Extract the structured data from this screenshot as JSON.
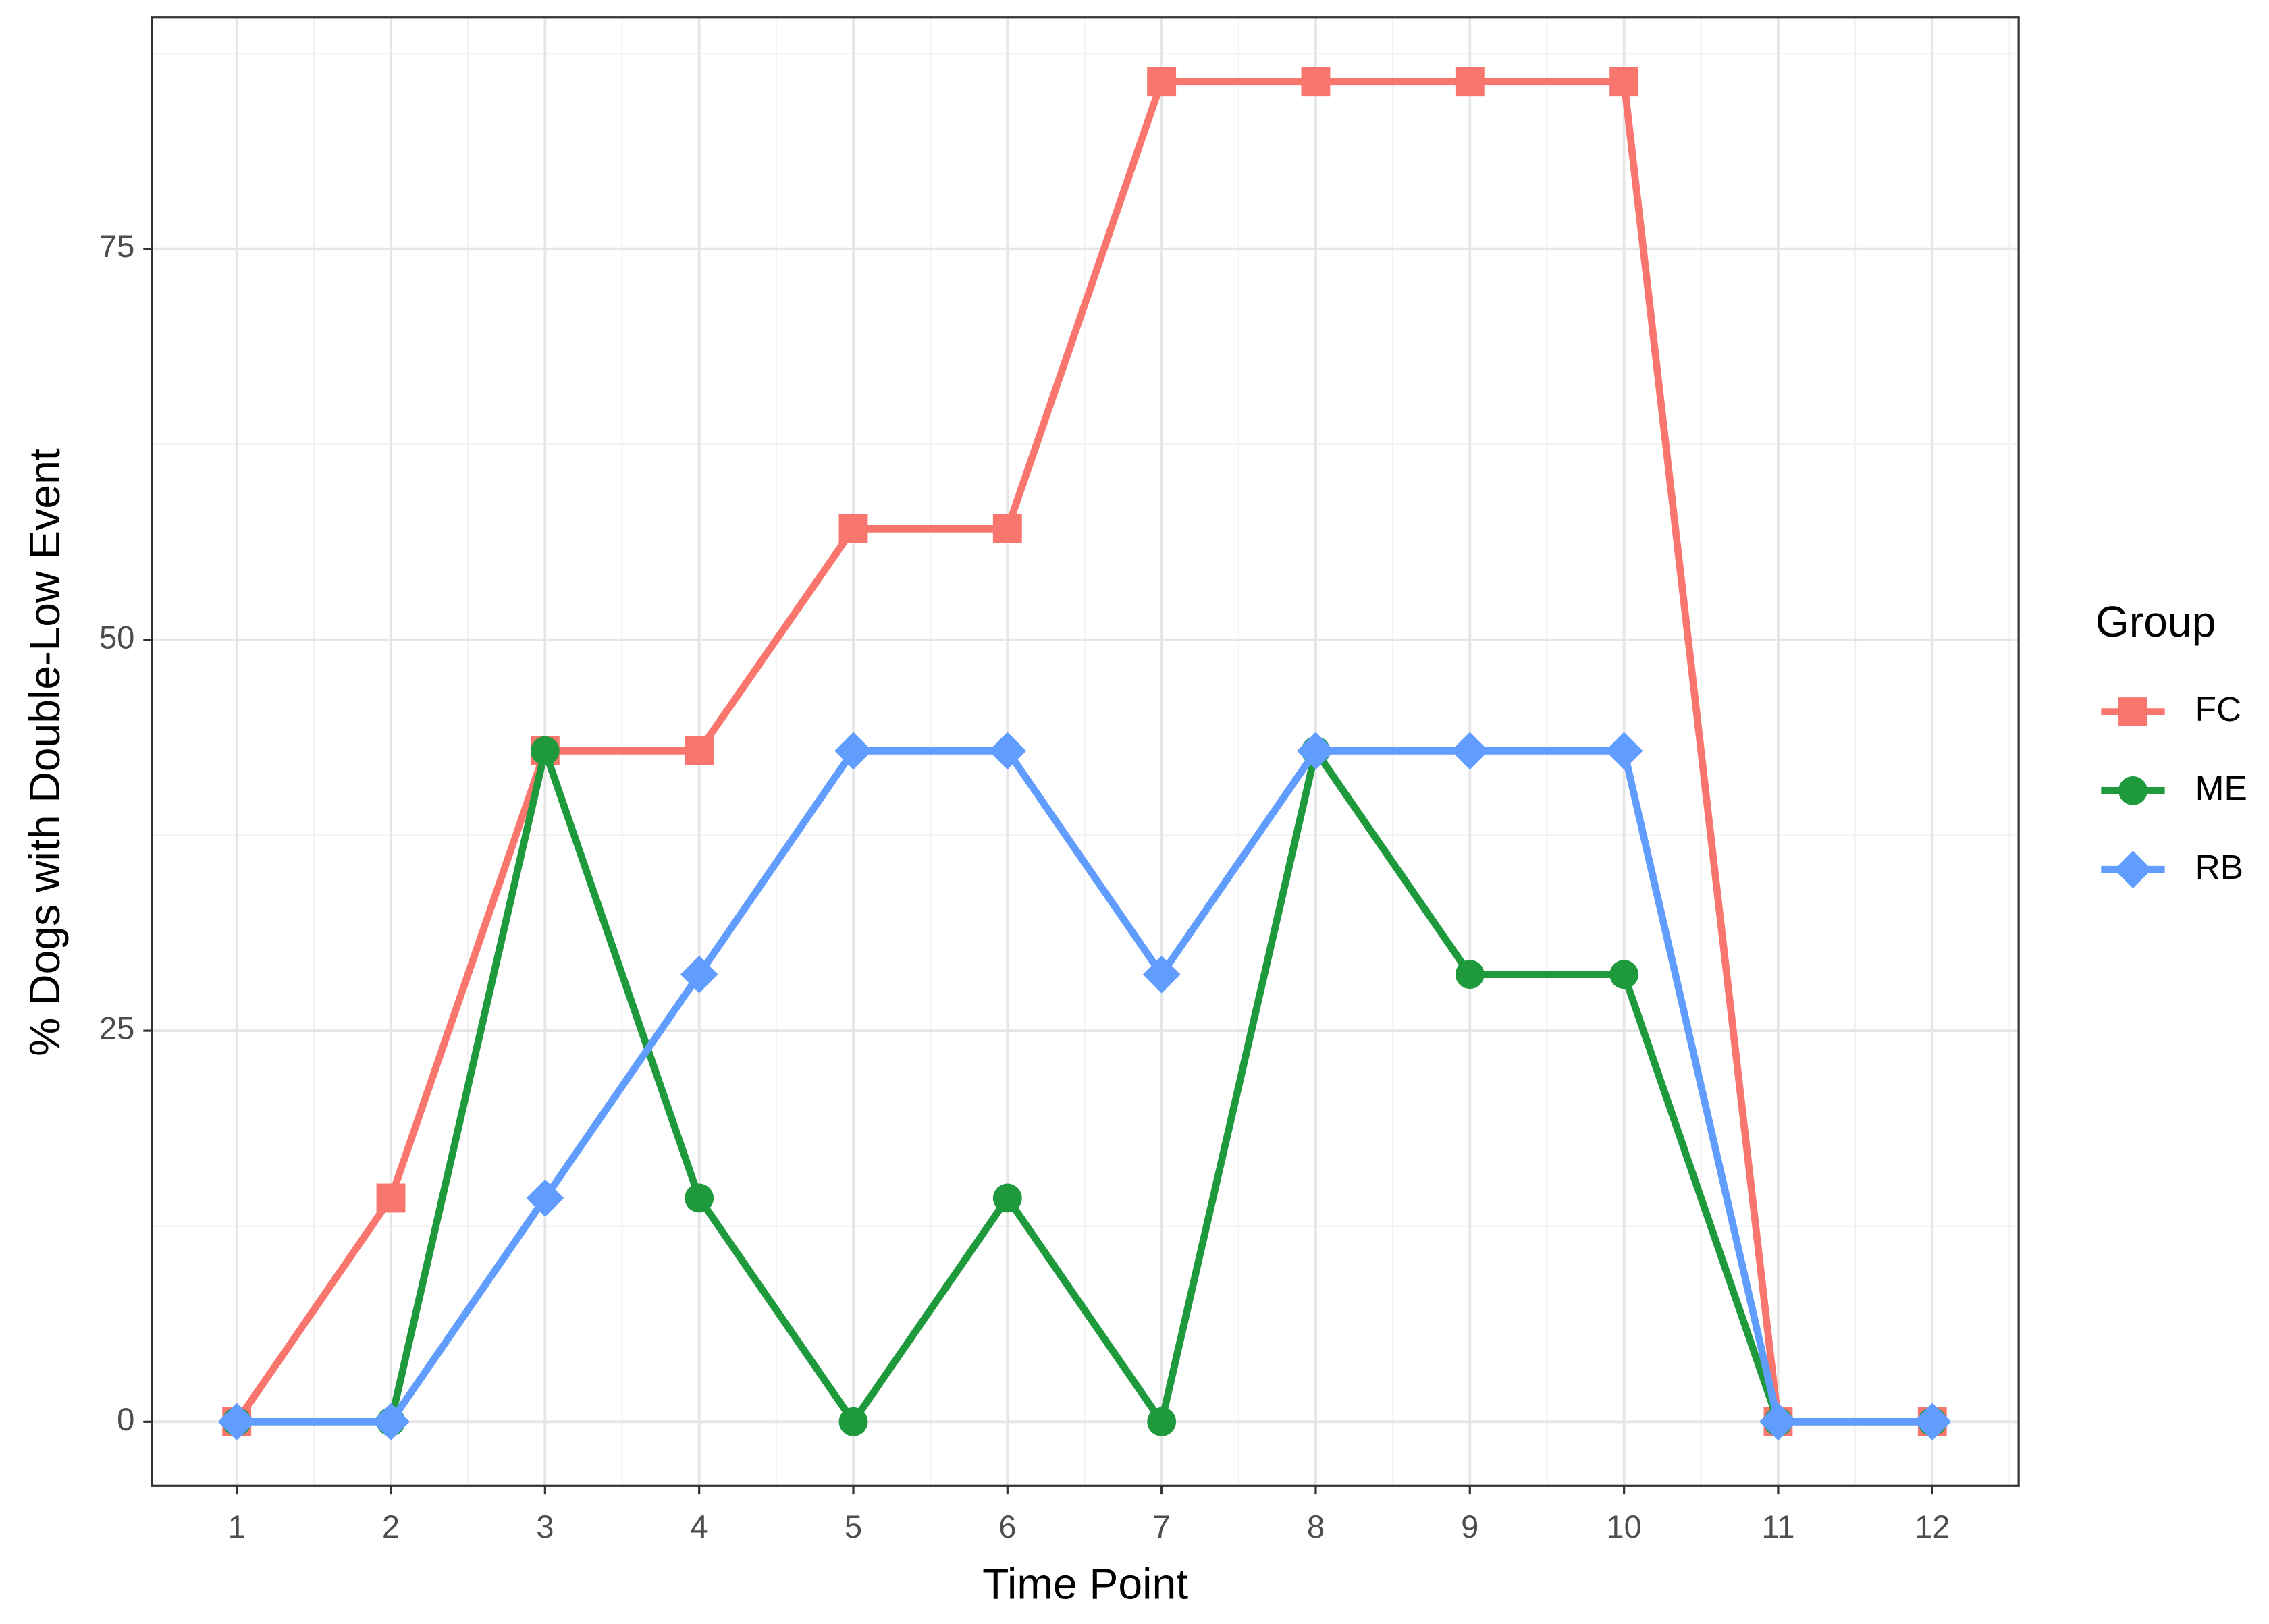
{
  "chart_data": {
    "type": "line",
    "x_label": "Time Point",
    "y_label": "% Dogs with Double-Low Event",
    "legend_title": "Group",
    "legend": "right",
    "x": [
      1,
      2,
      3,
      4,
      5,
      6,
      7,
      8,
      9,
      10,
      11,
      12
    ],
    "series": [
      {
        "name": "FC",
        "color": "#F8766D",
        "marker": "square",
        "values": [
          0,
          14.3,
          42.9,
          42.9,
          57.1,
          57.1,
          85.7,
          85.7,
          85.7,
          85.7,
          0,
          0
        ]
      },
      {
        "name": "ME",
        "color": "#1E9A3C",
        "marker": "circle",
        "values": [
          0,
          0,
          42.9,
          14.3,
          0,
          14.3,
          0,
          42.9,
          28.6,
          28.6,
          0,
          0
        ]
      },
      {
        "name": "RB",
        "color": "#619CFF",
        "marker": "diamond",
        "values": [
          0,
          0,
          14.3,
          28.6,
          42.9,
          42.9,
          28.6,
          42.9,
          42.9,
          42.9,
          0,
          0
        ]
      }
    ],
    "xlim": [
      0.45,
      12.56
    ],
    "xticks": [
      1,
      2,
      3,
      4,
      5,
      6,
      7,
      8,
      9,
      10,
      11,
      12
    ],
    "ylim": [
      -4.1,
      89.8
    ],
    "yticks": [
      0,
      25,
      50,
      75
    ],
    "grid": true
  }
}
